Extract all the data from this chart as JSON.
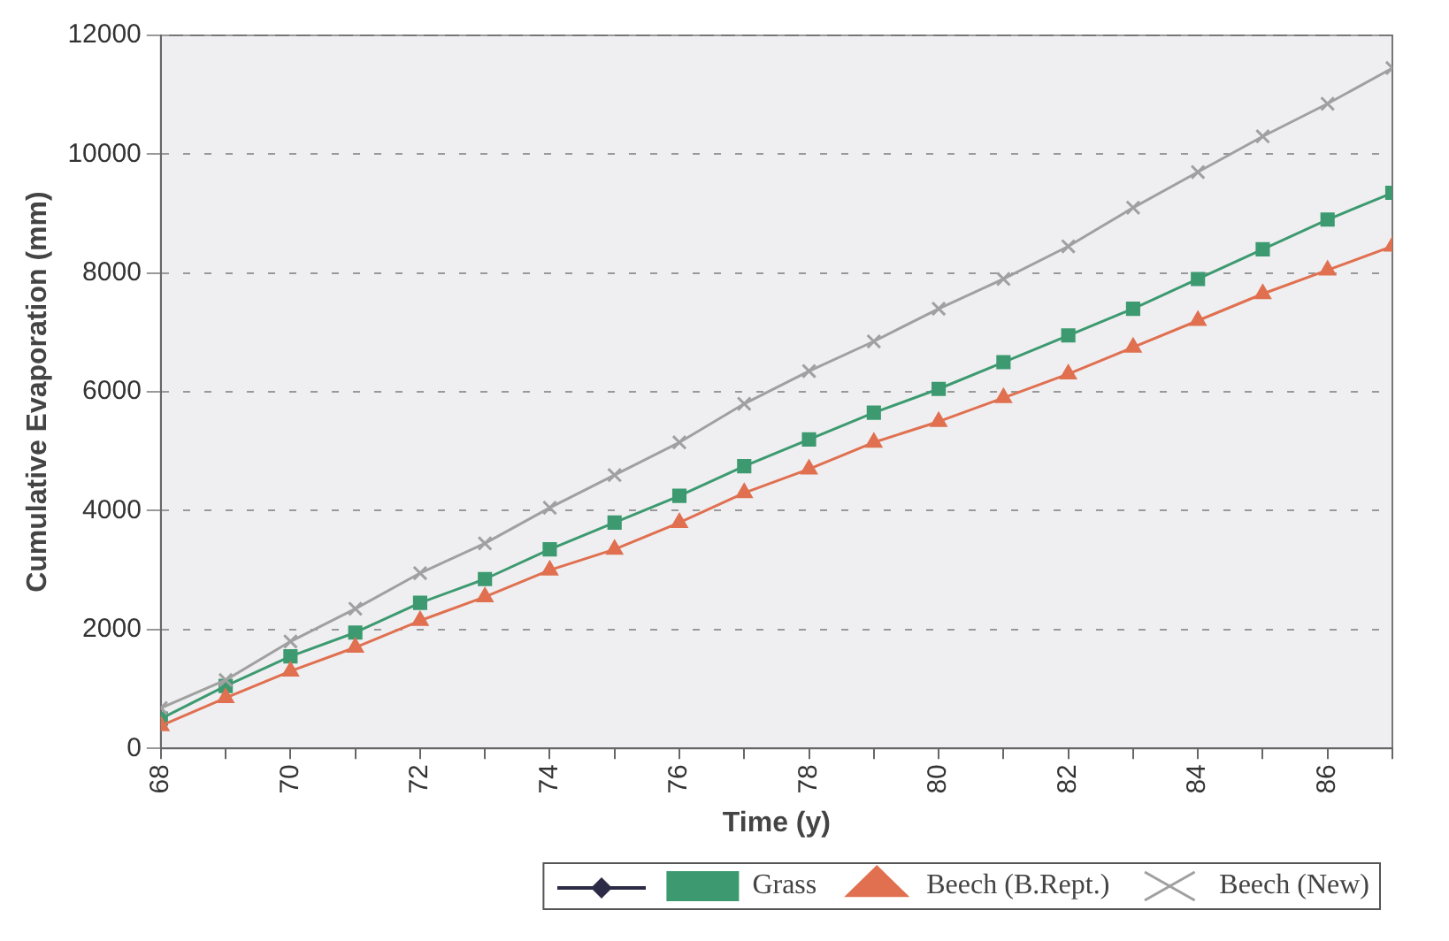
{
  "chart_data": {
    "type": "line",
    "xlabel": "Time (y)",
    "ylabel": "Cumulative Evaporation (mm)",
    "x": [
      68,
      69,
      70,
      71,
      72,
      73,
      74,
      75,
      76,
      77,
      78,
      79,
      80,
      81,
      82,
      83,
      84,
      85,
      86,
      87
    ],
    "xlim": [
      68,
      87
    ],
    "xticks": [
      68,
      {
        "value": 69,
        "label": null
      },
      70,
      {
        "value": 71,
        "label": null
      },
      72,
      {
        "value": 73,
        "label": null
      },
      74,
      {
        "value": 75,
        "label": null
      },
      76,
      {
        "value": 77,
        "label": null
      },
      78,
      {
        "value": 79,
        "label": null
      },
      80,
      {
        "value": 81,
        "label": null
      },
      82,
      {
        "value": 83,
        "label": null
      },
      84,
      {
        "value": 85,
        "label": null
      },
      86,
      {
        "value": 87,
        "label": null
      }
    ],
    "ylim": [
      0,
      12000
    ],
    "yticks": [
      0,
      2000,
      4000,
      6000,
      8000,
      10000,
      12000
    ],
    "grid": "y",
    "legend": "bottom right",
    "line_style": "solid",
    "series": [
      {
        "name": "Grass",
        "color": "#3d9a70",
        "marker": "square",
        "values": [
          500,
          1050,
          1550,
          1950,
          2450,
          2850,
          3350,
          3800,
          4250,
          4750,
          5200,
          5650,
          6050,
          6500,
          6950,
          7400,
          7900,
          8400,
          8900,
          9350
        ]
      },
      {
        "name": "Beech (B.Rept.)",
        "color": "#e07050",
        "marker": "triangle",
        "values": [
          380,
          850,
          1300,
          1700,
          2150,
          2550,
          3000,
          3350,
          3800,
          4300,
          4700,
          5150,
          5500,
          5900,
          6300,
          6750,
          7200,
          7650,
          8050,
          8450
        ]
      },
      {
        "name": "Beech (New)",
        "color": "#a0a0a0",
        "marker": "cross",
        "values": [
          680,
          1150,
          1800,
          2350,
          2950,
          3450,
          4050,
          4600,
          5150,
          5800,
          6350,
          6850,
          7400,
          7900,
          8450,
          9100,
          9700,
          10300,
          10850,
          11450
        ]
      }
    ]
  }
}
